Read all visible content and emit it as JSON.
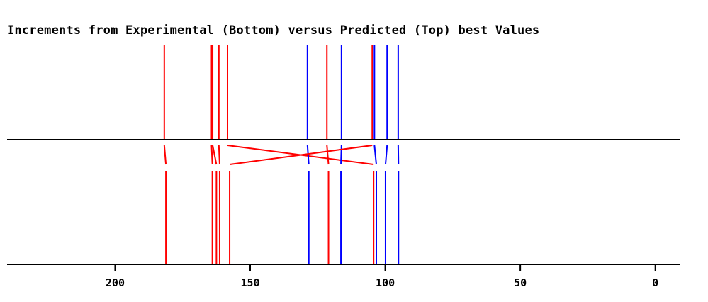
{
  "chart_data": {
    "type": "line",
    "title": "Increments from Experimental (Bottom) versus Predicted (Top) best Values",
    "xlabel": "",
    "ylabel": "",
    "xlim": [
      240,
      -9
    ],
    "x_ticks": [
      200,
      150,
      100,
      50,
      0
    ],
    "grid": false,
    "legend": "none",
    "colors": {
      "red": "#ff0000",
      "blue": "#0000ff",
      "axis": "#000000"
    },
    "pairs": [
      {
        "predicted": 181.8,
        "experimental": 181.2,
        "color": "red"
      },
      {
        "predicted": 164.3,
        "experimental": 164.0,
        "color": "red"
      },
      {
        "predicted": 163.9,
        "experimental": 162.5,
        "color": "red"
      },
      {
        "predicted": 161.6,
        "experimental": 161.3,
        "color": "red"
      },
      {
        "predicted": 158.4,
        "experimental": 104.3,
        "color": "red"
      },
      {
        "predicted": 128.8,
        "experimental": 128.3,
        "color": "blue"
      },
      {
        "predicted": 121.6,
        "experimental": 121.0,
        "color": "red"
      },
      {
        "predicted": 116.2,
        "experimental": 116.4,
        "color": "blue"
      },
      {
        "predicted": 104.8,
        "experimental": 157.6,
        "color": "red"
      },
      {
        "predicted": 104.0,
        "experimental": 103.3,
        "color": "blue"
      },
      {
        "predicted": 99.3,
        "experimental": 99.9,
        "color": "blue"
      },
      {
        "predicted": 95.2,
        "experimental": 95.1,
        "color": "blue"
      }
    ]
  }
}
